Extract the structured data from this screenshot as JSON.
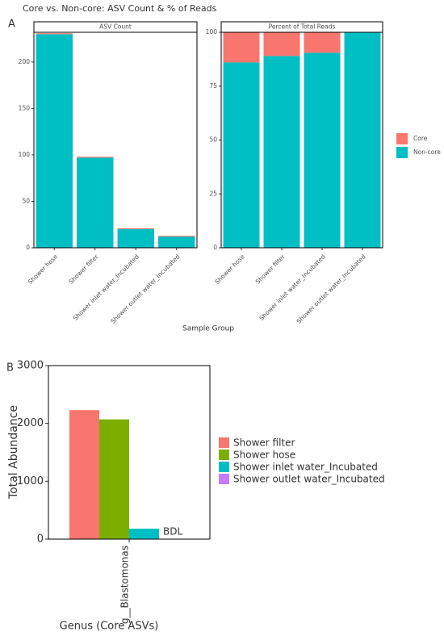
{
  "chart_data": [
    {
      "type": "bar",
      "stacked": true,
      "panel_label": "A",
      "title": "Core vs. Non-core: ASV Count & % of Reads",
      "x_label": "Sample Group",
      "categories": [
        "Shower hose",
        "Shower filter",
        "Shower inlet water_Incubated",
        "Shower outlet water_Incubated"
      ],
      "series": [
        {
          "name": "Core",
          "color": "#f8766d"
        },
        {
          "name": "Non-core",
          "color": "#00bfc4"
        }
      ],
      "facets": [
        {
          "title": "ASV Count",
          "ylim": [
            0,
            232
          ],
          "yticks": [
            0,
            50,
            100,
            150,
            200
          ],
          "values": [
            [
              1,
              1,
              1,
              1
            ],
            [
              230,
              97,
              20,
              12
            ]
          ]
        },
        {
          "title": "Percent of Total Reads",
          "ylim": [
            0,
            100
          ],
          "yticks": [
            0,
            25,
            50,
            75,
            100
          ],
          "values": [
            [
              14,
              11,
              9.5,
              0
            ],
            [
              86,
              89,
              90.5,
              100
            ]
          ]
        }
      ]
    },
    {
      "type": "bar",
      "stacked": false,
      "panel_label": "B",
      "x_label": "Genus (Core ASVs)",
      "y_label": "Total Abundance",
      "categories": [
        "g__Blastomonas"
      ],
      "ylim": [
        0,
        3000
      ],
      "yticks": [
        0,
        1000,
        2000,
        3000
      ],
      "series": [
        {
          "name": "Shower filter",
          "color": "#f8766d",
          "values": [
            2230
          ]
        },
        {
          "name": "Shower hose",
          "color": "#7cae00",
          "values": [
            2070
          ]
        },
        {
          "name": "Shower inlet water_Incubated",
          "color": "#00bfc4",
          "values": [
            180
          ]
        },
        {
          "name": "Shower outlet water_Incubated",
          "color": "#c77cff",
          "values": [
            null
          ],
          "value_labels": [
            "BDL"
          ]
        }
      ]
    }
  ]
}
